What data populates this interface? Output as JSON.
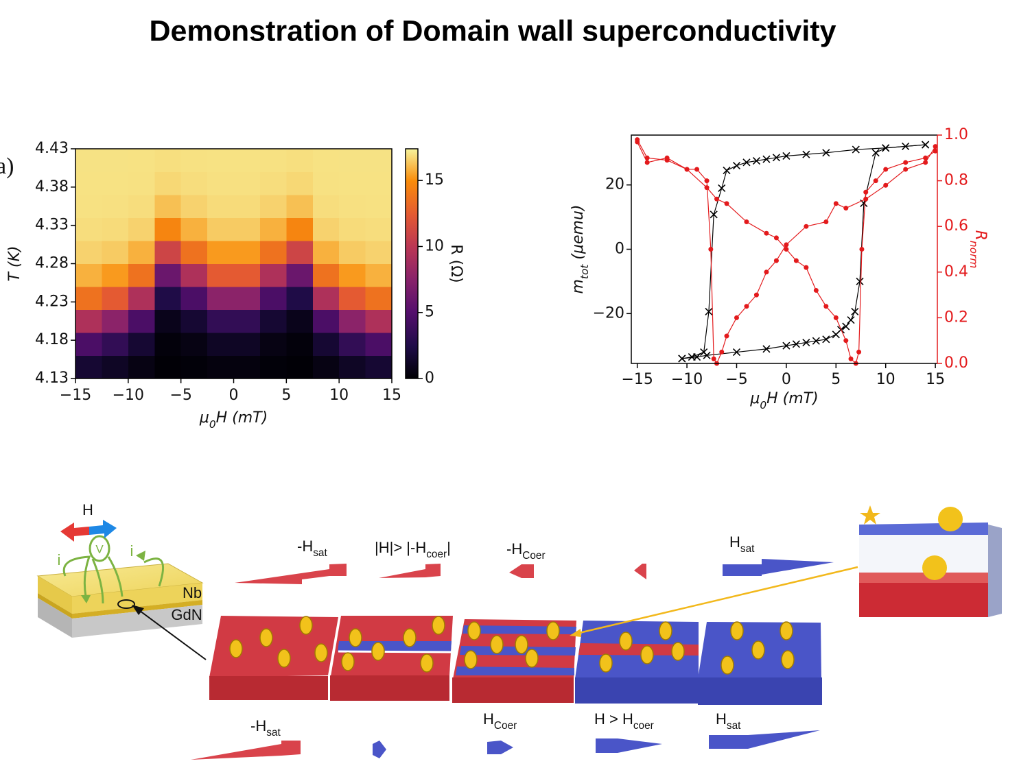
{
  "title": "Demonstration of Domain wall superconductivity",
  "panel_label": "a)",
  "chart_data": [
    {
      "type": "heatmap",
      "xlabel": [
        "μ",
        "0",
        "H (mT)"
      ],
      "ylabel": [
        "T (K)"
      ],
      "x": [
        -13.75,
        -11.25,
        -8.75,
        -6.25,
        -3.75,
        -1.25,
        1.25,
        3.75,
        6.25,
        8.75,
        11.25,
        13.75
      ],
      "y": [
        4.145,
        4.175,
        4.205,
        4.235,
        4.265,
        4.295,
        4.325,
        4.355,
        4.385,
        4.415
      ],
      "z": [
        [
          1.7,
          1.17,
          0.55,
          0.08,
          0.17,
          0.37,
          0.37,
          0.17,
          0.08,
          0.55,
          1.17,
          1.7
        ],
        [
          4.57,
          3.36,
          1.7,
          0.25,
          0.55,
          1.17,
          1.17,
          0.55,
          0.25,
          1.7,
          3.36,
          4.57
        ],
        [
          9.35,
          7.65,
          4.57,
          0.81,
          1.7,
          3.36,
          3.36,
          1.7,
          0.81,
          4.57,
          7.65,
          9.35
        ],
        [
          13.63,
          12.43,
          9.35,
          2.41,
          4.57,
          7.65,
          7.65,
          4.57,
          2.41,
          9.35,
          12.43,
          13.63
        ],
        [
          15.83,
          15.3,
          13.63,
          6.03,
          9.35,
          12.43,
          12.43,
          9.35,
          6.03,
          13.63,
          15.3,
          15.83
        ],
        [
          16.63,
          16.45,
          15.83,
          10.97,
          13.63,
          15.3,
          15.3,
          13.63,
          10.97,
          15.83,
          16.45,
          16.63
        ],
        [
          16.89,
          16.83,
          16.63,
          14.59,
          15.83,
          16.45,
          16.45,
          15.83,
          14.59,
          16.63,
          16.83,
          16.89
        ],
        [
          16.97,
          16.95,
          16.89,
          16.19,
          16.63,
          16.83,
          16.83,
          16.63,
          16.19,
          16.89,
          16.95,
          16.97
        ],
        [
          16.99,
          16.99,
          16.97,
          16.75,
          16.89,
          16.95,
          16.95,
          16.89,
          16.75,
          16.97,
          16.99,
          16.99
        ],
        [
          17.0,
          17.0,
          16.99,
          16.92,
          16.97,
          16.99,
          16.99,
          16.97,
          16.92,
          16.99,
          17.0,
          17.0
        ]
      ],
      "xlim": [
        -15,
        15
      ],
      "ylim": [
        4.13,
        4.43
      ],
      "xticks": [
        {
          "value": -15,
          "label": "−15"
        },
        {
          "value": -10,
          "label": "−10"
        },
        {
          "value": -5,
          "label": "−5"
        },
        0,
        5,
        10,
        15
      ],
      "yticks": [
        4.13,
        4.18,
        4.23,
        4.28,
        4.33,
        4.38,
        4.43
      ],
      "colormap": "inferno",
      "clim": [
        0,
        17.4
      ],
      "cticks": [
        0,
        5,
        10,
        15
      ],
      "clabel": [
        "R (Ω)"
      ]
    },
    {
      "type": "line",
      "xlabel": [
        "μ",
        "0",
        "H (mT)"
      ],
      "ylabel": [
        "m",
        "tot",
        " (μemu)"
      ],
      "y2label": [
        "R",
        "norm"
      ],
      "xlim": [
        -15.6,
        15.2
      ],
      "ylim": [
        -35.5,
        35.5
      ],
      "y2lim": [
        0,
        1
      ],
      "xticks": [
        {
          "value": -15,
          "label": "−15"
        },
        {
          "value": -10,
          "label": "−10"
        },
        {
          "value": -5,
          "label": "−5"
        },
        0,
        5,
        10,
        15
      ],
      "yticks": [
        {
          "value": -20,
          "label": "−20"
        },
        0,
        20
      ],
      "y2ticks": [
        {
          "value": 0,
          "label": "0.0"
        },
        0.2,
        0.4,
        0.6,
        0.8,
        {
          "value": 1,
          "label": "1.0"
        }
      ],
      "y2color": "#e31a1c",
      "series": [
        {
          "color": "#000000",
          "marker": "x",
          "x": [
            14,
            10,
            7,
            4,
            2,
            0,
            -1,
            -2,
            -3,
            -4,
            -5,
            -6,
            -6.5,
            -7.3,
            -7.8,
            -8.3,
            -9.5,
            -10.5
          ],
          "values": [
            32.5,
            31.5,
            31,
            30,
            29.5,
            29,
            28.5,
            28,
            27.5,
            27,
            26,
            24.5,
            19,
            10.8,
            -19.4,
            -32,
            -33.5,
            -34
          ]
        },
        {
          "color": "#000000",
          "marker": "x",
          "x": [
            -10.5,
            -9,
            -8,
            -5,
            -2,
            0,
            1,
            2,
            3,
            4,
            5,
            5.5,
            6,
            6.5,
            6.9,
            7.4,
            7.8,
            9,
            10,
            12,
            14
          ],
          "values": [
            -34,
            -33.5,
            -33,
            -32,
            -31,
            -30,
            -29.5,
            -29,
            -28.5,
            -28,
            -26.5,
            -25,
            -24,
            -22,
            -19.4,
            -10,
            14.3,
            30,
            31.5,
            32,
            32.5
          ]
        },
        {
          "color": "#e31a1c",
          "marker": "o",
          "axis": "y2",
          "x": [
            -15,
            -14,
            -12,
            -10,
            -8,
            -7,
            -6,
            -4,
            -2,
            -1,
            0,
            1,
            2,
            3,
            4,
            5,
            6,
            6.5,
            7,
            7.3,
            7.6,
            8,
            9,
            10,
            12,
            14,
            15
          ],
          "values": [
            0.98,
            0.9,
            0.89,
            0.85,
            0.77,
            0.72,
            0.7,
            0.62,
            0.57,
            0.55,
            0.5,
            0.45,
            0.42,
            0.32,
            0.25,
            0.2,
            0.1,
            0.02,
            0.0,
            0.05,
            0.5,
            0.75,
            0.8,
            0.85,
            0.88,
            0.9,
            0.93
          ]
        },
        {
          "color": "#e31a1c",
          "marker": "o",
          "axis": "y2",
          "x": [
            15,
            14,
            12,
            10,
            8,
            6,
            5,
            4,
            2,
            0,
            -1,
            -2,
            -3,
            -4,
            -5,
            -6,
            -6.5,
            -7,
            -7.3,
            -7.6,
            -8,
            -9,
            -10,
            -12,
            -14,
            -15
          ],
          "values": [
            0.95,
            0.88,
            0.85,
            0.78,
            0.72,
            0.68,
            0.7,
            0.62,
            0.6,
            0.52,
            0.45,
            0.4,
            0.3,
            0.25,
            0.2,
            0.12,
            0.05,
            0.0,
            0.02,
            0.5,
            0.8,
            0.85,
            0.85,
            0.9,
            0.88,
            0.97
          ]
        }
      ]
    }
  ],
  "diagram": {
    "field_label": "H",
    "current_labels": [
      "i",
      "i"
    ],
    "voltage_label": "V",
    "layers": [
      "Nb",
      "GdN"
    ],
    "top_labels": [
      {
        "parts": [
          "-H",
          "sat"
        ]
      },
      {
        "parts": [
          "|H|> |-H",
          "coer",
          "|"
        ]
      },
      {
        "parts": [
          "-H",
          "Coer"
        ]
      },
      {
        "parts": [
          "H",
          "sat"
        ]
      }
    ],
    "bottom_labels": [
      {
        "parts": [
          "-H",
          "sat"
        ]
      },
      {
        "parts": [
          "H",
          "Coer"
        ]
      },
      {
        "parts": [
          "H > H",
          "coer"
        ]
      },
      {
        "parts": [
          "H",
          "sat"
        ]
      }
    ]
  }
}
